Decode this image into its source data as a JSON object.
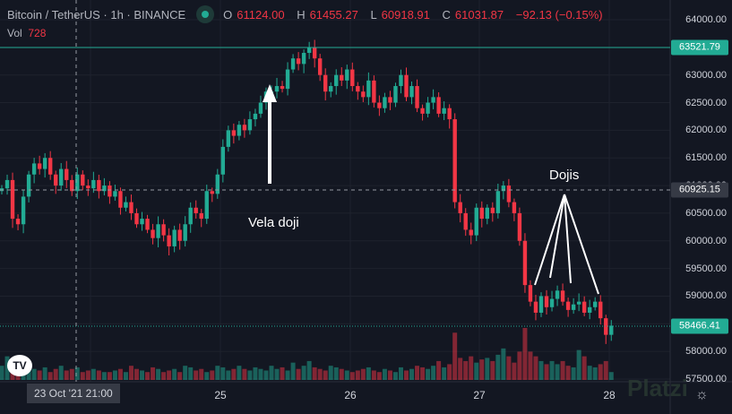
{
  "header": {
    "symbol": "Bitcoin / TetherUS · 1h · BINANCE",
    "o_label": "O",
    "o": "61124.00",
    "h_label": "H",
    "h": "61455.27",
    "l_label": "L",
    "l": "60918.91",
    "c_label": "C",
    "c": "61031.87",
    "change": "−92.13 (−0.15%)",
    "vol_label": "Vol",
    "vol": "728"
  },
  "colors": {
    "up": "#22ab94",
    "down": "#f23645",
    "bg": "#131722",
    "grid": "#2a2e39"
  },
  "axis": {
    "ticks": [
      "64000.00",
      "63500.00",
      "63000.00",
      "62500.00",
      "62000.00",
      "61500.00",
      "61000.00",
      "60500.00",
      "60000.00",
      "59500.00",
      "59000.00",
      "58500.00",
      "58000.00",
      "57500.00"
    ],
    "x_labels": [
      "25",
      "26",
      "27",
      "28"
    ],
    "crosshair_time": "23 Oct '21  21:00"
  },
  "price_labels": {
    "high_line": "63521.79",
    "crosshair": "60925.15",
    "last": "58466.41"
  },
  "annotations": {
    "vela_doji": "Vela doji",
    "dojis": "Dojis"
  },
  "watermark": "Platzi",
  "logo": "TV",
  "chart_data": {
    "type": "candlestick",
    "interval": "1h",
    "ylim": [
      57500,
      64000
    ],
    "first_open": 60900,
    "closes": [
      60950,
      61100,
      60400,
      60300,
      60800,
      61200,
      61400,
      61300,
      61500,
      61200,
      61000,
      61300,
      61100,
      60900,
      61200,
      61000,
      60950,
      61100,
      60900,
      61000,
      60800,
      60900,
      60600,
      60700,
      60500,
      60300,
      60400,
      60200,
      60050,
      60300,
      60100,
      59900,
      60200,
      60000,
      60300,
      60600,
      60500,
      60400,
      60900,
      60850,
      61200,
      61700,
      62000,
      61900,
      62100,
      62000,
      62200,
      62300,
      62500,
      62700,
      62700,
      62800,
      62750,
      63100,
      63300,
      63200,
      63400,
      63500,
      63300,
      63000,
      62700,
      62800,
      63000,
      62900,
      63100,
      62800,
      62700,
      62600,
      62900,
      62500,
      62400,
      62600,
      62500,
      62800,
      63000,
      62600,
      62800,
      62400,
      62300,
      62500,
      62600,
      62300,
      62400,
      62200,
      60700,
      60500,
      60200,
      60100,
      60600,
      60400,
      60600,
      60500,
      60900,
      61000,
      60700,
      60500,
      60000,
      59200,
      58900,
      58700,
      59000,
      58800,
      58950,
      59100,
      58900,
      58750,
      58850,
      58900,
      58700,
      58800,
      58900,
      58600,
      58300,
      58466
    ],
    "volumes": [
      900,
      1500,
      700,
      600,
      800,
      900,
      700,
      600,
      800,
      500,
      700,
      900,
      600,
      700,
      800,
      500,
      600,
      700,
      600,
      500,
      500,
      600,
      700,
      500,
      900,
      700,
      600,
      500,
      800,
      700,
      500,
      600,
      700,
      500,
      900,
      800,
      600,
      700,
      500,
      600,
      900,
      800,
      600,
      700,
      900,
      700,
      600,
      800,
      700,
      600,
      900,
      700,
      800,
      600,
      1100,
      700,
      900,
      1200,
      800,
      700,
      600,
      900,
      800,
      700,
      600,
      500,
      600,
      700,
      800,
      600,
      500,
      700,
      600,
      500,
      800,
      600,
      700,
      900,
      800,
      700,
      900,
      1200,
      800,
      1000,
      3000,
      1400,
      1200,
      1500,
      1100,
      1300,
      1400,
      1200,
      1600,
      2000,
      1500,
      1100,
      1800,
      3300,
      1800,
      1500,
      1200,
      1000,
      1200,
      1000,
      1200,
      900,
      800,
      1900,
      1500,
      900,
      800,
      1000,
      1200,
      500
    ]
  }
}
